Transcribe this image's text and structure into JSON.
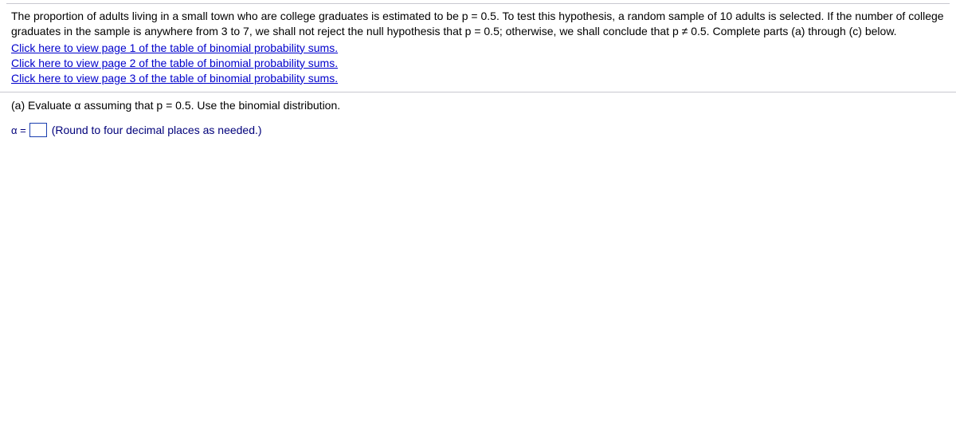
{
  "problem": {
    "text": "The proportion of adults living in a small town who are college graduates is estimated to be p = 0.5. To test this hypothesis, a random sample of 10 adults is selected. If the number of college graduates in the sample is anywhere from 3 to 7, we shall not reject the null hypothesis that p = 0.5; otherwise, we shall conclude that p ≠ 0.5. Complete parts (a) through (c) below.",
    "links": {
      "page1": "Click here to view page 1 of the table of binomial probability sums.",
      "page2": "Click here to view page 2 of the table of binomial probability sums.",
      "page3": "Click here to view page 3 of the table of binomial probability sums."
    }
  },
  "part_a": {
    "prompt": "(a) Evaluate α assuming that p = 0.5. Use the binomial distribution.",
    "label": "α =",
    "input_value": "",
    "hint": "(Round to four decimal places as needed.)"
  }
}
